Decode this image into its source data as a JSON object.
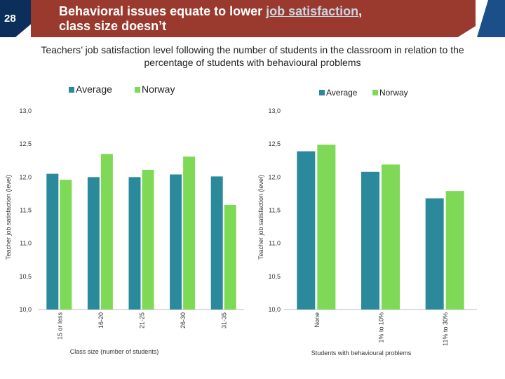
{
  "header": {
    "page_number": "28",
    "title_line1_pre": "Behavioral issues equate to lower ",
    "title_line1_hl": "job satisfaction",
    "title_line1_post": ",",
    "title_line2": "class size doesn’t"
  },
  "subtitle": "Teachers’ job satisfaction level following the number of students in the classroom  in relation to the percentage of students with behavioural problems",
  "colors": {
    "average": "#2a8a9c",
    "norway": "#7ed957",
    "header_red": "#9a3a2e",
    "header_blue": "#0b2f5a"
  },
  "chart_data": [
    {
      "type": "bar",
      "categories": [
        "15 or less",
        "16-20",
        "21-25",
        "26-30",
        "31-35"
      ],
      "series": [
        {
          "name": "Average",
          "values": [
            12.05,
            12.0,
            12.0,
            12.04,
            12.01
          ]
        },
        {
          "name": "Norway",
          "values": [
            11.96,
            12.35,
            12.11,
            12.31,
            11.58
          ]
        }
      ],
      "xlabel": "Class size (number of students)",
      "ylabel": "Teacher job satisfaction (level)",
      "ylim": [
        10.0,
        13.0
      ],
      "yticks": [
        "10,0",
        "10,5",
        "11,0",
        "11,5",
        "12,0",
        "12,5",
        "13,0"
      ],
      "legend_position": "top"
    },
    {
      "type": "bar",
      "categories": [
        "None",
        "1% to 10%",
        "11% to 30%"
      ],
      "series": [
        {
          "name": "Average",
          "values": [
            12.39,
            12.08,
            11.68
          ]
        },
        {
          "name": "Norway",
          "values": [
            12.49,
            12.19,
            11.79
          ]
        }
      ],
      "xlabel": "Students with behavioural problems",
      "ylabel": "Teacher job satisfaction (level)",
      "ylim": [
        10.0,
        13.0
      ],
      "yticks": [
        "10,0",
        "10,5",
        "11,0",
        "11,5",
        "12,0",
        "12,5",
        "13,0"
      ],
      "legend_position": "top"
    }
  ]
}
